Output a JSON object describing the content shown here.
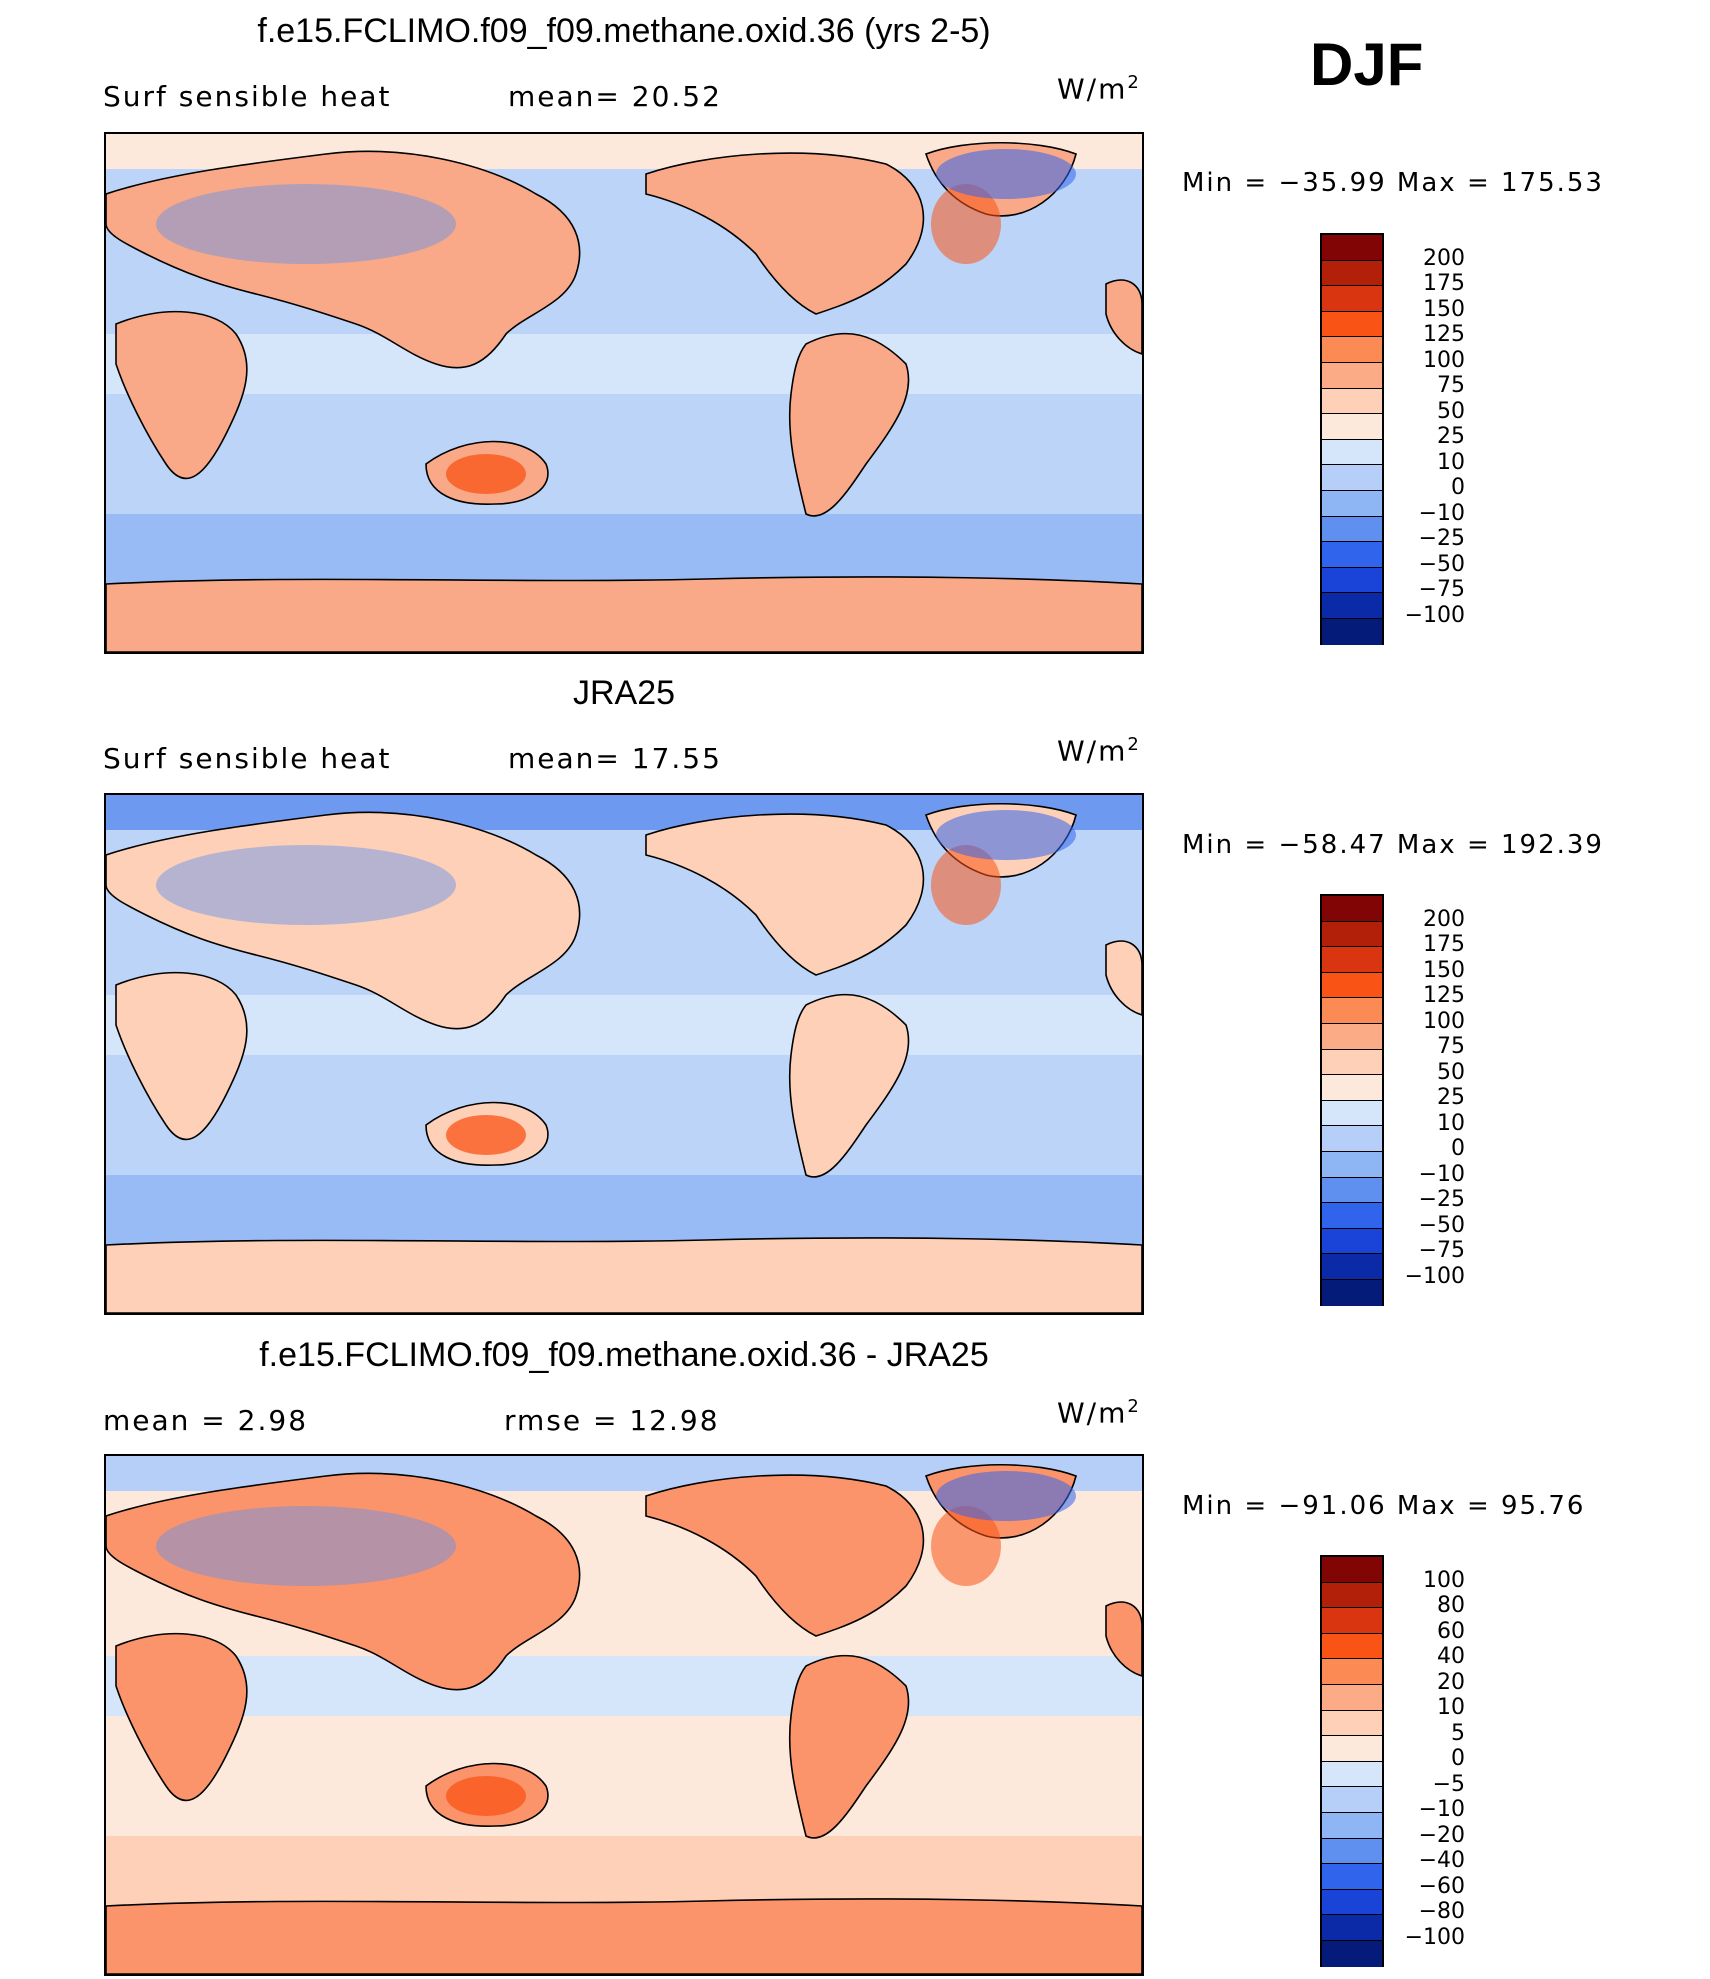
{
  "season": "DJF",
  "panels": [
    {
      "title": "f.e15.FCLIMO.f09_f09.methane.oxid.36 (yrs 2-5)",
      "left_label": "Surf  sensible  heat",
      "center_label": "mean=   20.52",
      "units": "W/m",
      "units_exp": "2",
      "minmax": "Min  =  −35.99  Max  =  175.53",
      "levels": [
        "200",
        "175",
        "150",
        "125",
        "100",
        "75",
        "50",
        "25",
        "10",
        "0",
        "−10",
        "−25",
        "−50",
        "−75",
        "−100"
      ],
      "colors": [
        "#820505",
        "#b3200a",
        "#d83510",
        "#fa5316",
        "#fb8a55",
        "#fbac87",
        "#fdd0b7",
        "#fde9db",
        "#d5e6fb",
        "#b6cff8",
        "#8eb5f4",
        "#5f90ef",
        "#3164ec",
        "#1a44d8",
        "#0b2aa8",
        "#051b79"
      ],
      "map_tint": "base"
    },
    {
      "title": "JRA25",
      "left_label": "Surf  sensible  heat",
      "center_label": "mean=   17.55",
      "units": "W/m",
      "units_exp": "2",
      "minmax": "Min  =  −58.47  Max  =  192.39",
      "levels": [
        "200",
        "175",
        "150",
        "125",
        "100",
        "75",
        "50",
        "25",
        "10",
        "0",
        "−10",
        "−25",
        "−50",
        "−75",
        "−100"
      ],
      "colors": [
        "#820505",
        "#b3200a",
        "#d83510",
        "#fa5316",
        "#fb8a55",
        "#fbac87",
        "#fdd0b7",
        "#fde9db",
        "#d5e6fb",
        "#b6cff8",
        "#8eb5f4",
        "#5f90ef",
        "#3164ec",
        "#1a44d8",
        "#0b2aa8",
        "#051b79"
      ],
      "map_tint": "obs"
    },
    {
      "title": "f.e15.FCLIMO.f09_f09.methane.oxid.36 - JRA25",
      "left_label": "mean  =     2.98",
      "center_label": "rmse  =    12.98",
      "units": "W/m",
      "units_exp": "2",
      "minmax": "Min  =  −91.06  Max  =    95.76",
      "levels": [
        "100",
        "80",
        "60",
        "40",
        "20",
        "10",
        "5",
        "0",
        "−5",
        "−10",
        "−20",
        "−40",
        "−60",
        "−80",
        "−100"
      ],
      "colors": [
        "#820505",
        "#b3200a",
        "#d83510",
        "#fa5316",
        "#fb8a55",
        "#fbac87",
        "#fdd0b7",
        "#fde9db",
        "#d5e6fb",
        "#b6cff8",
        "#8eb5f4",
        "#5f90ef",
        "#3164ec",
        "#1a44d8",
        "#0b2aa8",
        "#051b79"
      ],
      "map_tint": "diff"
    }
  ]
}
